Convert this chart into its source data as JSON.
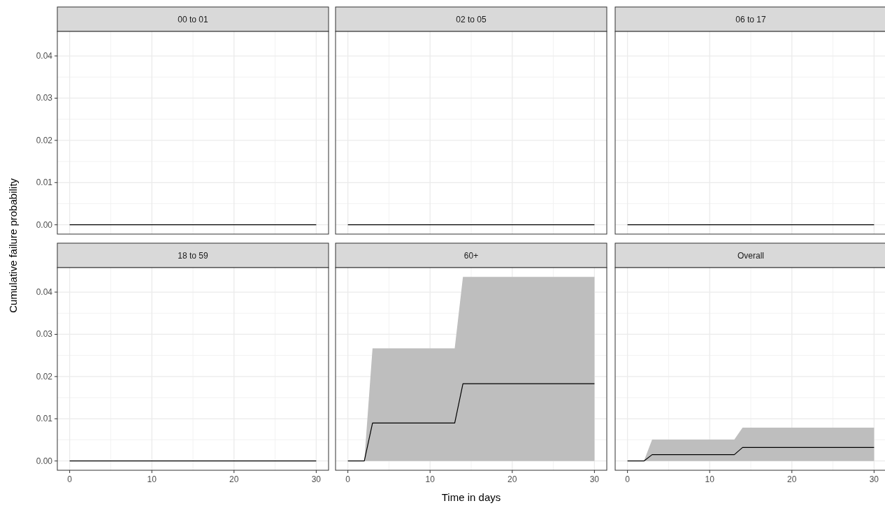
{
  "chart_data": [
    {
      "type": "line",
      "title": "00 to 01",
      "ylabel": "Cumulative failure probability",
      "xlim": [
        -1.5,
        31.5
      ],
      "ylim": [
        -0.0022,
        0.0458
      ],
      "xticks": [
        0,
        10,
        20,
        30
      ],
      "yticks": [
        {
          "value": 0,
          "label": "0.00"
        },
        0.01,
        0.02,
        0.03,
        0.04
      ],
      "grid": true,
      "tick_labels": "y",
      "series": [
        {
          "color": "#000000",
          "x": [
            0,
            30
          ],
          "values": [
            0,
            0
          ]
        }
      ]
    },
    {
      "type": "line",
      "title": "02 to 05",
      "xlim": [
        -1.5,
        31.5
      ],
      "ylim": [
        -0.0022,
        0.0458
      ],
      "xticks": [
        0,
        10,
        20,
        30
      ],
      "yticks": [
        0,
        0.01,
        0.02,
        0.03,
        0.04
      ],
      "grid": true,
      "tick_labels": false,
      "series": [
        {
          "color": "#000000",
          "x": [
            0,
            30
          ],
          "values": [
            0,
            0
          ]
        }
      ]
    },
    {
      "type": "line",
      "title": "06 to 17",
      "xlim": [
        -1.5,
        31.5
      ],
      "ylim": [
        -0.0022,
        0.0458
      ],
      "xticks": [
        0,
        10,
        20,
        30
      ],
      "yticks": [
        0,
        0.01,
        0.02,
        0.03,
        0.04
      ],
      "grid": true,
      "tick_labels": false,
      "series": [
        {
          "color": "#000000",
          "x": [
            0,
            30
          ],
          "values": [
            0,
            0
          ]
        }
      ]
    },
    {
      "type": "line",
      "title": "18 to 59",
      "xlim": [
        -1.5,
        31.5
      ],
      "ylim": [
        -0.0022,
        0.0458
      ],
      "xticks": [
        0,
        10,
        20,
        30
      ],
      "yticks": [
        {
          "value": 0,
          "label": "0.00"
        },
        0.01,
        0.02,
        0.03,
        0.04
      ],
      "grid": true,
      "series": [
        {
          "color": "#000000",
          "x": [
            0,
            30
          ],
          "values": [
            0,
            0
          ]
        }
      ]
    },
    {
      "type": "line",
      "title": "60+",
      "xlabel": "Time in days",
      "xlim": [
        -1.5,
        31.5
      ],
      "ylim": [
        -0.0022,
        0.0458
      ],
      "xticks": [
        0,
        10,
        20,
        30
      ],
      "yticks": [
        0,
        0.01,
        0.02,
        0.03,
        0.04
      ],
      "grid": true,
      "tick_labels": "x",
      "series": [
        {
          "color": "#000000",
          "x": [
            0,
            2,
            3,
            13,
            14,
            30
          ],
          "values": [
            0,
            0,
            0.009,
            0.009,
            0.0183,
            0.0183
          ],
          "lower": [
            null,
            0,
            0,
            0,
            0,
            0
          ],
          "upper": [
            null,
            0,
            0.0267,
            0.0267,
            0.0436,
            0.0436
          ]
        }
      ]
    },
    {
      "type": "line",
      "title": "Overall",
      "xlim": [
        -1.5,
        31.5
      ],
      "ylim": [
        -0.0022,
        0.0458
      ],
      "xticks": [
        0,
        10,
        20,
        30
      ],
      "yticks": [
        0,
        0.01,
        0.02,
        0.03,
        0.04
      ],
      "grid": true,
      "tick_labels": "x",
      "series": [
        {
          "color": "#000000",
          "x": [
            0,
            2,
            3,
            13,
            14,
            30
          ],
          "values": [
            0,
            0,
            0.0015,
            0.0015,
            0.0032,
            0.0032
          ],
          "lower": [
            null,
            0,
            0,
            0,
            0,
            0
          ],
          "upper": [
            null,
            0,
            0.0051,
            0.0051,
            0.0079,
            0.0079
          ]
        }
      ]
    }
  ]
}
